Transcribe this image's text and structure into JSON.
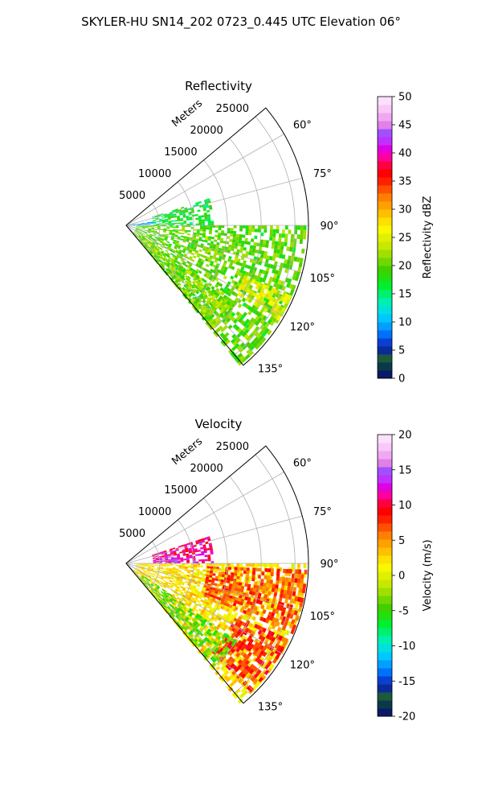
{
  "figure": {
    "title": "SKYLER-HU  SN14_202  0723_0.445 UTC Elevation 06°"
  },
  "chart_data": [
    {
      "type": "heatmap",
      "title": "Reflectivity",
      "range_label": "Meters",
      "range_ticks": [
        5000,
        10000,
        15000,
        20000,
        25000
      ],
      "range_tick_labels": [
        "5000",
        "10000",
        "15000",
        "20000",
        "25000"
      ],
      "range_max": 27000,
      "azimuth_range": [
        50,
        140
      ],
      "azimuth_ticks": [
        60,
        75,
        90,
        105,
        120,
        135
      ],
      "azimuth_tick_labels": [
        "60°",
        "75°",
        "90°",
        "105°",
        "120°",
        "135°"
      ],
      "grid": true,
      "colorbar": {
        "label": "Reflectivity dBZ",
        "range": [
          0,
          50
        ],
        "ticks": [
          0,
          5,
          10,
          15,
          20,
          25,
          30,
          35,
          40,
          45,
          50
        ],
        "tick_labels": [
          "0",
          "5",
          "10",
          "15",
          "20",
          "25",
          "30",
          "35",
          "40",
          "45",
          "50"
        ],
        "colors": [
          "#0a1a66",
          "#0a3a4a",
          "#1b5a3a",
          "#0a2a9a",
          "#0a40d0",
          "#0070ff",
          "#00a0ff",
          "#00c8ff",
          "#00e0e0",
          "#00f0b0",
          "#00f070",
          "#00f030",
          "#20e010",
          "#40d000",
          "#70d800",
          "#a0e000",
          "#c8e800",
          "#e0f000",
          "#f8f800",
          "#ffe000",
          "#ffc000",
          "#ffa000",
          "#ff8000",
          "#ff5000",
          "#ff2000",
          "#ff0000",
          "#ff0040",
          "#ff00a0",
          "#e000e0",
          "#c030ff",
          "#a050ff",
          "#e080e8",
          "#f0a8f0",
          "#f8c8f8",
          "#fce0fc"
        ]
      },
      "regions": [
        {
          "az_start": 90,
          "az_end": 140,
          "r_start": 1500,
          "r_end": 26500,
          "value": 20,
          "description": "main echo band"
        },
        {
          "az_start": 113,
          "az_end": 122,
          "r_start": 19000,
          "r_end": 26500,
          "value": 25
        },
        {
          "az_start": 72,
          "az_end": 90,
          "r_start": 4000,
          "r_end": 13000,
          "value": 17
        },
        {
          "az_start": 82,
          "az_end": 90,
          "r_start": 0,
          "r_end": 4500,
          "value": 10
        },
        {
          "az_start": 125,
          "az_end": 140,
          "r_start": 3000,
          "r_end": 20000,
          "value": 21
        }
      ]
    },
    {
      "type": "heatmap",
      "title": "Velocity",
      "range_label": "Meters",
      "range_ticks": [
        5000,
        10000,
        15000,
        20000,
        25000
      ],
      "range_tick_labels": [
        "5000",
        "10000",
        "15000",
        "20000",
        "25000"
      ],
      "range_max": 27000,
      "azimuth_range": [
        50,
        140
      ],
      "azimuth_ticks": [
        60,
        75,
        90,
        105,
        120,
        135
      ],
      "azimuth_tick_labels": [
        "60°",
        "75°",
        "90°",
        "105°",
        "120°",
        "135°"
      ],
      "grid": true,
      "colorbar": {
        "label": "Velocity (m/s)",
        "range": [
          -20,
          20
        ],
        "ticks": [
          -20,
          -15,
          -10,
          -5,
          0,
          5,
          10,
          15,
          20
        ],
        "tick_labels": [
          "-20",
          "-15",
          "-10",
          "-5",
          "0",
          "5",
          "10",
          "15",
          "20"
        ],
        "colors": [
          "#0a1a66",
          "#0a3a4a",
          "#1b5a3a",
          "#0a2a9a",
          "#0a40d0",
          "#0070ff",
          "#00a0ff",
          "#00c8ff",
          "#00e0e0",
          "#00f0b0",
          "#00f070",
          "#00f030",
          "#20e010",
          "#40d000",
          "#70d800",
          "#a0e000",
          "#c8e800",
          "#e0f000",
          "#f8f800",
          "#ffe000",
          "#ffc000",
          "#ffa000",
          "#ff8000",
          "#ff5000",
          "#ff2000",
          "#ff0000",
          "#ff0040",
          "#ff00a0",
          "#e000e0",
          "#c030ff",
          "#a050ff",
          "#e080e8",
          "#f0a8f0",
          "#f8c8f8",
          "#fce0fc"
        ]
      },
      "regions": [
        {
          "az_start": 90,
          "az_end": 140,
          "r_start": 1500,
          "r_end": 26500,
          "value": 2
        },
        {
          "az_start": 92,
          "az_end": 112,
          "r_start": 12000,
          "r_end": 26500,
          "value": 7
        },
        {
          "az_start": 115,
          "az_end": 135,
          "r_start": 18000,
          "r_end": 26500,
          "value": 8
        },
        {
          "az_start": 72,
          "az_end": 90,
          "r_start": 4000,
          "r_end": 13000,
          "value": 11
        },
        {
          "az_start": 80,
          "az_end": 88,
          "r_start": 4000,
          "r_end": 8000,
          "value": 14
        },
        {
          "az_start": 125,
          "az_end": 140,
          "r_start": 3000,
          "r_end": 20000,
          "value": -4
        }
      ]
    }
  ]
}
